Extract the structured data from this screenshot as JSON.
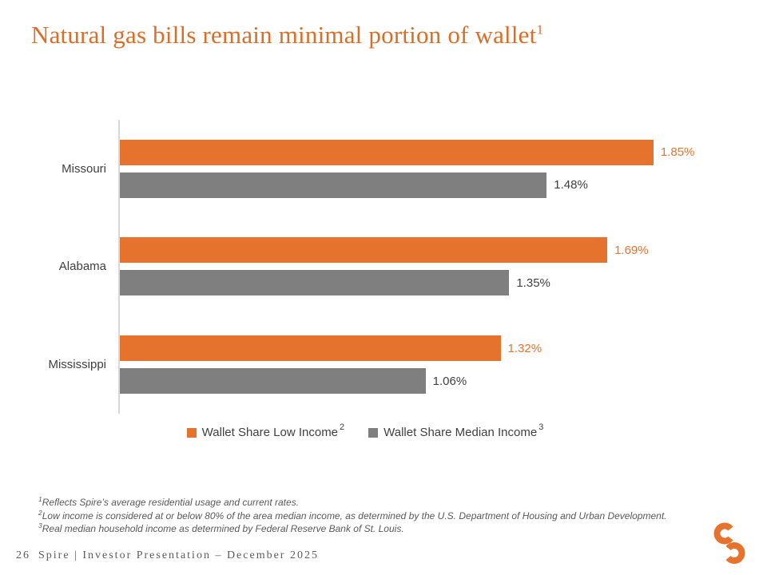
{
  "colors": {
    "title_orange": "#D96E28",
    "bar_orange": "#E6732D",
    "bar_gray": "#7F7F7F",
    "text_dark": "#404040",
    "axis_gray": "#D9D9D9",
    "footnote_gray": "#595959",
    "footer_gray": "#5C5C5C"
  },
  "title": {
    "text": "Natural gas bills remain minimal portion of wallet",
    "superscript": "1"
  },
  "chart_data": {
    "type": "bar",
    "orientation": "horizontal",
    "title": "Natural gas bills remain minimal portion of wallet",
    "categories": [
      "Missouri",
      "Alabama",
      "Mississippi"
    ],
    "series": [
      {
        "name": "Wallet Share Low Income",
        "legend_superscript": "2",
        "color": "#E6732D",
        "values": [
          1.85,
          1.69,
          1.32
        ],
        "value_labels": [
          "1.85%",
          "1.69%",
          "1.32%"
        ]
      },
      {
        "name": "Wallet Share Median Income",
        "legend_superscript": "3",
        "color": "#7F7F7F",
        "values": [
          1.48,
          1.35,
          1.06
        ],
        "value_labels": [
          "1.48%",
          "1.35%",
          "1.06%"
        ]
      }
    ],
    "xlim": [
      0,
      2.0
    ],
    "xlabel": "",
    "ylabel": "",
    "grid": false,
    "axis_ticks_shown": false,
    "value_labels_shown": true,
    "legend_position": "bottom"
  },
  "footnotes": [
    {
      "sup": "1",
      "text": "Reflects Spire’s average residential usage and current rates."
    },
    {
      "sup": "2",
      "text": "Low income is considered at or below 80% of the area median income, as determined by the U.S. Department of Housing and Urban Development."
    },
    {
      "sup": "3",
      "text": "Real median household income as determined by Federal Reserve Bank of St. Louis."
    }
  ],
  "footer": {
    "page_number": "26",
    "text": "Spire | Investor Presentation – December 2025"
  }
}
